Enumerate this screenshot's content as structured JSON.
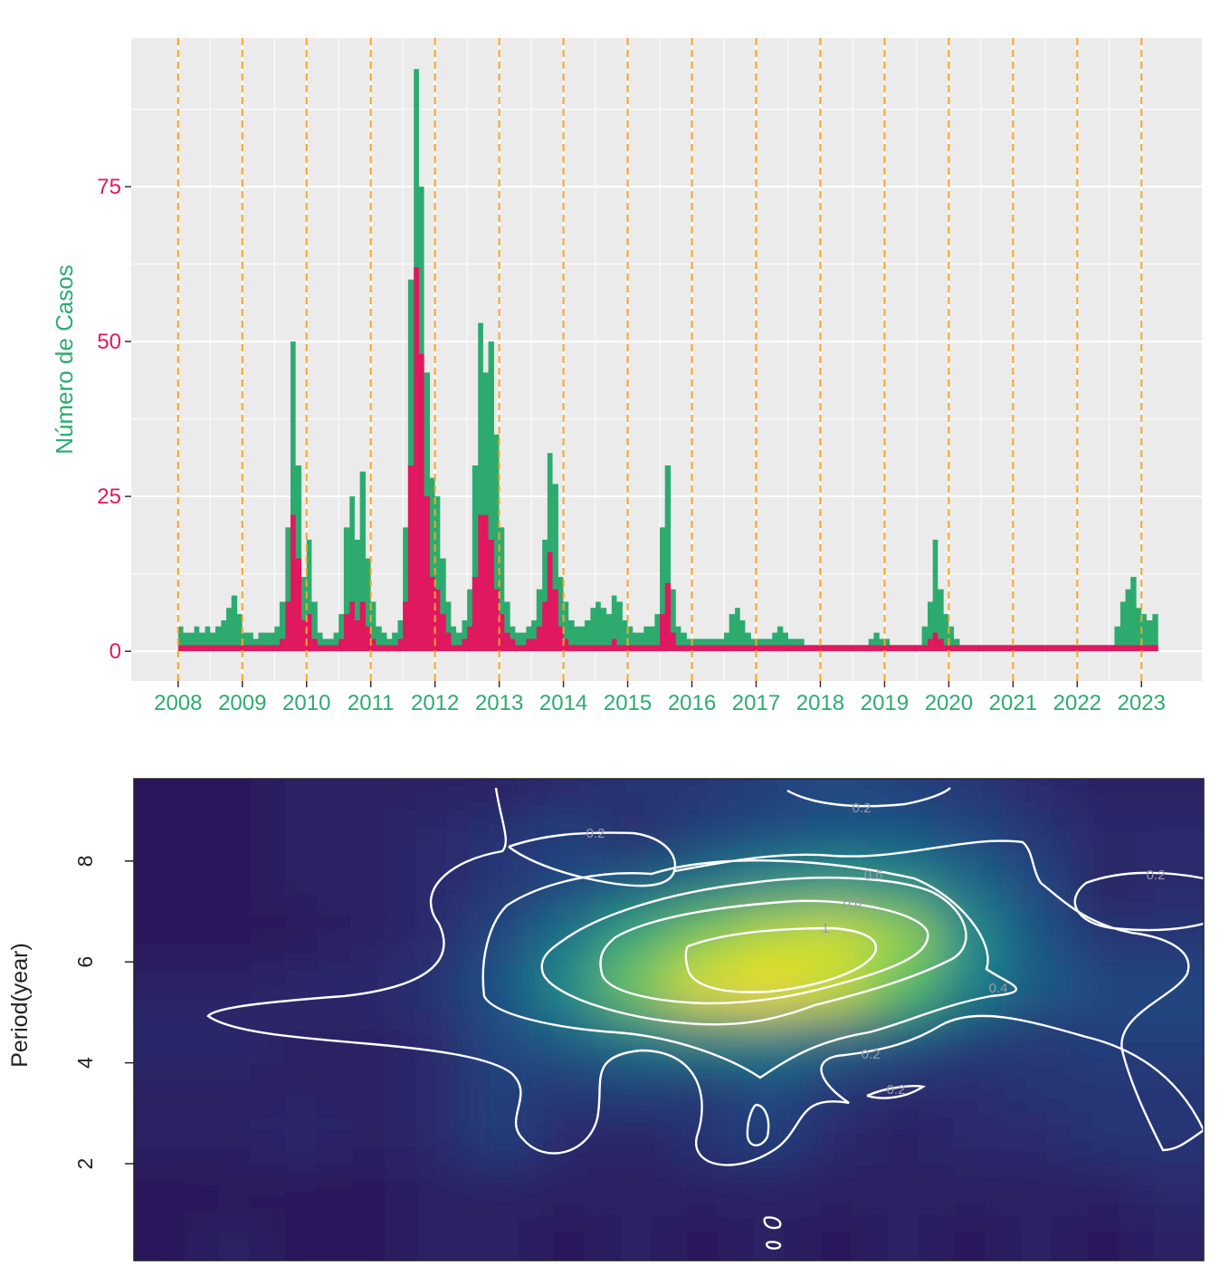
{
  "chart_data": [
    {
      "type": "area",
      "y_label": "Número de Casos",
      "ylabel_color": "#2dab6f",
      "xtick_color": "#2dab6f",
      "ytick_color": "#e0185f",
      "vline_color": "#f5a623",
      "background": "#ebebeb",
      "grid": true,
      "xlim": [
        2007.27,
        2023.94
      ],
      "xticks": [
        2008,
        2009,
        2010,
        2011,
        2012,
        2013,
        2014,
        2015,
        2016,
        2017,
        2018,
        2019,
        2020,
        2021,
        2022,
        2023
      ],
      "ylim": [
        -4.8,
        99
      ],
      "yticks": [
        0,
        25,
        50,
        75
      ],
      "x": [
        2008,
        2008.08,
        2008.17,
        2008.25,
        2008.33,
        2008.42,
        2008.5,
        2008.58,
        2008.67,
        2008.75,
        2008.83,
        2008.92,
        2009,
        2009.08,
        2009.17,
        2009.25,
        2009.33,
        2009.42,
        2009.5,
        2009.58,
        2009.67,
        2009.75,
        2009.83,
        2009.92,
        2010,
        2010.08,
        2010.17,
        2010.25,
        2010.33,
        2010.42,
        2010.5,
        2010.58,
        2010.67,
        2010.75,
        2010.83,
        2010.92,
        2011,
        2011.08,
        2011.17,
        2011.25,
        2011.33,
        2011.42,
        2011.5,
        2011.58,
        2011.67,
        2011.75,
        2011.83,
        2011.92,
        2012,
        2012.08,
        2012.17,
        2012.25,
        2012.33,
        2012.42,
        2012.5,
        2012.58,
        2012.67,
        2012.75,
        2012.83,
        2012.92,
        2013,
        2013.08,
        2013.17,
        2013.25,
        2013.33,
        2013.42,
        2013.5,
        2013.58,
        2013.67,
        2013.75,
        2013.83,
        2013.92,
        2014,
        2014.08,
        2014.17,
        2014.25,
        2014.33,
        2014.42,
        2014.5,
        2014.58,
        2014.67,
        2014.75,
        2014.83,
        2014.92,
        2015,
        2015.08,
        2015.17,
        2015.25,
        2015.33,
        2015.42,
        2015.5,
        2015.58,
        2015.67,
        2015.75,
        2015.83,
        2015.92,
        2016,
        2016.08,
        2016.17,
        2016.25,
        2016.33,
        2016.42,
        2016.5,
        2016.58,
        2016.67,
        2016.75,
        2016.83,
        2016.92,
        2017,
        2017.08,
        2017.17,
        2017.25,
        2017.33,
        2017.42,
        2017.5,
        2017.58,
        2017.67,
        2017.75,
        2017.83,
        2017.92,
        2018,
        2018.08,
        2018.17,
        2018.25,
        2018.33,
        2018.42,
        2018.5,
        2018.58,
        2018.67,
        2018.75,
        2018.83,
        2018.92,
        2019,
        2019.08,
        2019.17,
        2019.25,
        2019.33,
        2019.42,
        2019.5,
        2019.58,
        2019.67,
        2019.75,
        2019.83,
        2019.92,
        2020,
        2020.08,
        2020.17,
        2020.25,
        2020.33,
        2020.42,
        2020.5,
        2020.58,
        2020.67,
        2020.75,
        2020.83,
        2020.92,
        2021,
        2021.08,
        2021.17,
        2021.25,
        2021.33,
        2021.42,
        2021.5,
        2021.58,
        2021.67,
        2021.75,
        2021.83,
        2021.92,
        2022,
        2022.08,
        2022.17,
        2022.25,
        2022.33,
        2022.42,
        2022.5,
        2022.58,
        2022.67,
        2022.75,
        2022.83,
        2022.92,
        2023,
        2023.08,
        2023.17
      ],
      "series": [
        {
          "color": "#2dab6f",
          "values": [
            4,
            3,
            3,
            4,
            3,
            4,
            3,
            4,
            5,
            7,
            9,
            6,
            3,
            3,
            2,
            3,
            3,
            3,
            4,
            8,
            20,
            50,
            30,
            12,
            18,
            8,
            3,
            2,
            2,
            3,
            6,
            20,
            25,
            18,
            29,
            15,
            8,
            4,
            3,
            2,
            3,
            5,
            20,
            60,
            94,
            75,
            45,
            28,
            25,
            15,
            8,
            4,
            3,
            5,
            10,
            30,
            53,
            45,
            50,
            35,
            20,
            8,
            4,
            3,
            3,
            4,
            5,
            10,
            18,
            32,
            27,
            12,
            8,
            5,
            4,
            4,
            5,
            7,
            8,
            7,
            6,
            9,
            8,
            5,
            4,
            3,
            3,
            4,
            4,
            6,
            20,
            30,
            10,
            4,
            3,
            2,
            2,
            2,
            2,
            2,
            2,
            2,
            3,
            6,
            7,
            5,
            3,
            2,
            2,
            2,
            2,
            3,
            4,
            3,
            2,
            2,
            2,
            1,
            1,
            1,
            1,
            1,
            1,
            1,
            1,
            1,
            1,
            1,
            1,
            2,
            3,
            2,
            2,
            1,
            1,
            1,
            1,
            1,
            1,
            4,
            8,
            18,
            10,
            6,
            4,
            2,
            1,
            1,
            1,
            1,
            1,
            1,
            1,
            1,
            1,
            1,
            1,
            1,
            1,
            1,
            1,
            1,
            1,
            1,
            1,
            1,
            1,
            1,
            1,
            1,
            1,
            1,
            1,
            1,
            1,
            4,
            8,
            10,
            12,
            7,
            6,
            5,
            6
          ]
        },
        {
          "color": "#e0185f",
          "values": [
            1,
            1,
            1,
            1,
            1,
            1,
            1,
            1,
            1,
            1,
            1,
            1,
            1,
            1,
            1,
            1,
            1,
            1,
            1,
            2,
            8,
            22,
            15,
            5,
            6,
            2,
            1,
            1,
            1,
            1,
            2,
            6,
            8,
            5,
            8,
            4,
            2,
            1,
            1,
            1,
            1,
            2,
            8,
            30,
            62,
            48,
            25,
            12,
            10,
            6,
            3,
            1,
            1,
            2,
            4,
            12,
            22,
            22,
            18,
            10,
            6,
            3,
            2,
            1,
            1,
            2,
            2,
            4,
            8,
            16,
            10,
            4,
            2,
            1,
            1,
            1,
            1,
            1,
            1,
            1,
            1,
            2,
            1,
            1,
            1,
            1,
            1,
            1,
            1,
            1,
            6,
            11,
            3,
            1,
            1,
            1,
            1,
            1,
            1,
            1,
            1,
            1,
            1,
            1,
            1,
            1,
            1,
            1,
            1,
            1,
            1,
            1,
            1,
            1,
            1,
            1,
            1,
            1,
            1,
            1,
            1,
            1,
            1,
            1,
            1,
            1,
            1,
            1,
            1,
            1,
            1,
            1,
            1,
            1,
            1,
            1,
            1,
            1,
            1,
            1,
            2,
            3,
            2,
            1,
            1,
            1,
            1,
            1,
            1,
            1,
            1,
            1,
            1,
            1,
            1,
            1,
            1,
            1,
            1,
            1,
            1,
            1,
            1,
            1,
            1,
            1,
            1,
            1,
            1,
            1,
            1,
            1,
            1,
            1,
            1,
            1,
            1,
            1,
            1,
            1,
            1,
            1,
            1
          ]
        }
      ]
    },
    {
      "type": "heatmap",
      "y_label": "Period(year)",
      "ylim": [
        0.08,
        9.63
      ],
      "yticks": [
        2,
        4,
        6,
        8
      ],
      "rows": [
        9.5,
        8.5,
        7.5,
        6.5,
        5.5,
        4.5,
        3.5,
        2.5,
        1.5,
        0.5
      ],
      "zlim": [
        0,
        1.1
      ],
      "colormap": [
        "#2a0c50",
        "#2c2c6e",
        "#1f4c84",
        "#1b6f8a",
        "#22978a",
        "#4cbf6c",
        "#b4dc34",
        "#f6e21c"
      ],
      "values": [
        [
          0.05,
          0.05,
          0.1,
          0.1,
          0.1,
          0.1,
          0.15,
          0.2,
          0.2,
          0.25,
          0.3,
          0.25,
          0.2,
          0.15,
          0.1,
          0.1
        ],
        [
          0.05,
          0.05,
          0.1,
          0.1,
          0.15,
          0.2,
          0.25,
          0.15,
          0.25,
          0.3,
          0.35,
          0.35,
          0.3,
          0.2,
          0.15,
          0.15
        ],
        [
          0.05,
          0.05,
          0.1,
          0.1,
          0.15,
          0.2,
          0.3,
          0.4,
          0.5,
          0.6,
          0.65,
          0.6,
          0.45,
          0.3,
          0.1,
          0.15
        ],
        [
          0.05,
          0.05,
          0.05,
          0.1,
          0.15,
          0.3,
          0.5,
          0.7,
          0.85,
          0.95,
          1.0,
          0.9,
          0.6,
          0.35,
          0.2,
          0.2
        ],
        [
          0.1,
          0.1,
          0.15,
          0.15,
          0.2,
          0.35,
          0.6,
          0.85,
          1.05,
          1.1,
          1.0,
          0.8,
          0.55,
          0.4,
          0.3,
          0.3
        ],
        [
          0.15,
          0.15,
          0.1,
          0.1,
          0.15,
          0.3,
          0.4,
          0.5,
          0.55,
          0.55,
          0.45,
          0.35,
          0.25,
          0.2,
          0.25,
          0.25
        ],
        [
          0.1,
          0.1,
          0.1,
          0.1,
          0.15,
          0.25,
          0.2,
          0.25,
          0.2,
          0.3,
          0.2,
          0.15,
          0.15,
          0.2,
          0.2,
          0.2
        ],
        [
          0.1,
          0.1,
          0.15,
          0.1,
          0.15,
          0.25,
          0.15,
          0.1,
          0.2,
          0.25,
          0.15,
          0.1,
          0.15,
          0.15,
          0.2,
          0.2
        ],
        [
          0.05,
          0.05,
          0.05,
          0.05,
          0.1,
          0.1,
          0.1,
          0.1,
          0.1,
          0.1,
          0.1,
          0.1,
          0.1,
          0.1,
          0.1,
          0.15
        ],
        [
          0.05,
          0.1,
          0.05,
          0.05,
          0.1,
          0.1,
          0.05,
          0.1,
          0.05,
          0.1,
          0.05,
          0.1,
          0.05,
          0.1,
          0.05,
          0.1
        ]
      ],
      "contour_levels": [
        0.2,
        0.4,
        0.6,
        0.8,
        1
      ]
    }
  ]
}
